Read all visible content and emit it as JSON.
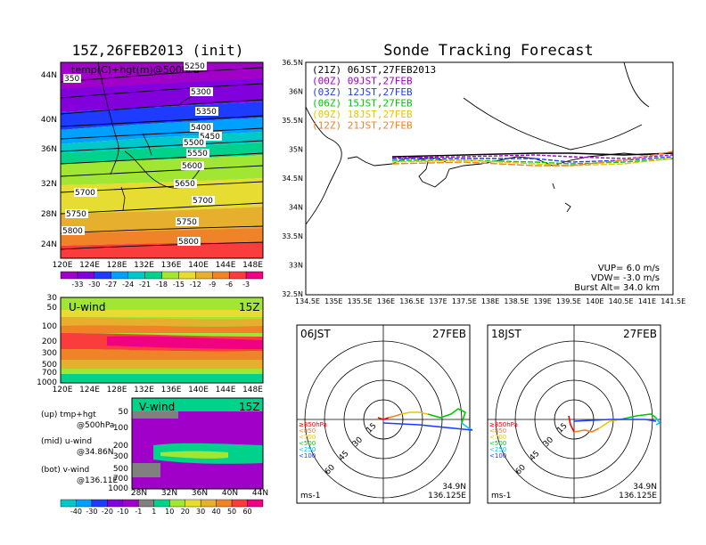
{
  "titles": {
    "left": "15Z,26FEB2013 (init)",
    "right": "Sonde Tracking Forecast"
  },
  "upper_map": {
    "overlay_label": "temp(C)+hgt(m)@500hPa",
    "lat_labels": [
      "44N",
      "40N",
      "36N",
      "32N",
      "28N",
      "24N"
    ],
    "lon_labels": [
      "120E",
      "124E",
      "128E",
      "132E",
      "136E",
      "140E",
      "144E",
      "148E"
    ],
    "contour_labels": [
      "5250",
      "5300",
      "5350",
      "5400",
      "5450",
      "5500",
      "5550",
      "5600",
      "5650",
      "5700",
      "5700",
      "5750",
      "5750",
      "5800",
      "5800",
      "350"
    ]
  },
  "temp_colorbar": {
    "values": [
      "-33",
      "-30",
      "-27",
      "-24",
      "-21",
      "-18",
      "-15",
      "-12",
      "-9",
      "-6",
      "-3"
    ],
    "colors": [
      "#a000c8",
      "#8200dc",
      "#1e3cff",
      "#00a0ff",
      "#00c8c8",
      "#00d28c",
      "#a0e632",
      "#e6dc32",
      "#e6af2d",
      "#f08228",
      "#fa3c3c",
      "#f00082"
    ]
  },
  "uwind": {
    "title": "U-wind",
    "time": "15Z",
    "p_labels": [
      "30",
      "50",
      "100",
      "200",
      "300",
      "500",
      "700",
      "1000"
    ],
    "lon_labels": [
      "120E",
      "124E",
      "128E",
      "132E",
      "136E",
      "140E",
      "144E",
      "148E"
    ]
  },
  "vwind": {
    "title": "V-wind",
    "time": "15Z",
    "p_labels": [
      "50",
      "100",
      "200",
      "300",
      "500",
      "700",
      "1000"
    ],
    "lat_labels": [
      "28N",
      "32N",
      "36N",
      "40N",
      "44N"
    ]
  },
  "notes": [
    {
      "line1": "(up) tmp+hgt",
      "line2": "@500hPa"
    },
    {
      "line1": "(mid) u-wind",
      "line2": "@34.86N"
    },
    {
      "line1": "(bot) v-wind",
      "line2": "@136.11E"
    }
  ],
  "wind_colorbar": {
    "values": [
      "-40",
      "-30",
      "-20",
      "-10",
      "-1",
      "1",
      "10",
      "20",
      "30",
      "40",
      "50",
      "60"
    ],
    "colors": [
      "#00c8c8",
      "#00a0ff",
      "#1e3cff",
      "#8200dc",
      "#a000c8",
      "#808080",
      "#00d28c",
      "#a0e632",
      "#e6dc32",
      "#e6af2d",
      "#f08228",
      "#fa3c3c",
      "#f00082"
    ]
  },
  "track_map": {
    "lat_labels": [
      "36.5N",
      "36N",
      "35.5N",
      "35N",
      "34.5N",
      "34N",
      "33.5N",
      "33N",
      "32.5N"
    ],
    "lon_labels": [
      "134.5E",
      "135E",
      "135.5E",
      "136E",
      "136.5E",
      "137E",
      "137.5E",
      "138E",
      "138.5E",
      "139E",
      "139.5E",
      "140E",
      "140.5E",
      "141E",
      "141.5E"
    ],
    "legend": [
      {
        "text": "(21Z)  06JST,27FEB2013",
        "color": "#000000"
      },
      {
        "text": "(00Z)  09JST,27FEB",
        "color": "#a000c8"
      },
      {
        "text": "(03Z)  12JST,27FEB",
        "color": "#1e3cff"
      },
      {
        "text": "(06Z)  15JST,27FEB",
        "color": "#00c800"
      },
      {
        "text": "(09Z)  18JST,27FEB",
        "color": "#e6c800"
      },
      {
        "text": "(12Z)  21JST,27FEB",
        "color": "#f08228"
      }
    ],
    "params": [
      "VUP=  6.0  m/s",
      "VDW= -3.0  m/s",
      "Burst Alt=  34.0  km"
    ]
  },
  "polar_left": {
    "time": "06JST",
    "date": "27FEB",
    "ring_labels": [
      "15",
      "30",
      "45",
      "60"
    ],
    "levels": [
      "≥850hPa",
      "<850",
      "<700",
      "<500",
      "<250",
      "<100"
    ],
    "level_colors": [
      "#fa0000",
      "#f08228",
      "#e6c800",
      "#00c800",
      "#00c8ff",
      "#1e3cff"
    ],
    "unit": "ms-1",
    "lat": "34.9N",
    "lon": "136.125E"
  },
  "polar_right": {
    "time": "18JST",
    "date": "27FEB",
    "ring_labels": [
      "15",
      "30",
      "45",
      "60"
    ],
    "levels": [
      "≥850hPa",
      "<850",
      "<700",
      "<500",
      "<250",
      "<100"
    ],
    "level_colors": [
      "#fa0000",
      "#f08228",
      "#e6c800",
      "#00c800",
      "#00c8ff",
      "#1e3cff"
    ],
    "unit": "ms-1",
    "lat": "34.9N",
    "lon": "136.125E"
  }
}
